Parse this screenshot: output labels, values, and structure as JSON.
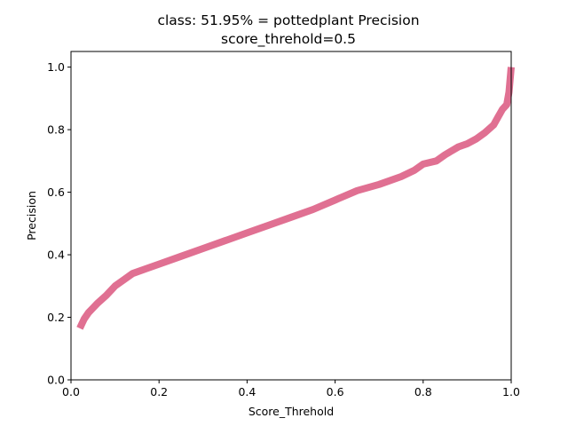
{
  "chart_data": {
    "type": "line",
    "title_lines": [
      "class: 51.95% = pottedplant Precision",
      "score_threhold=0.5"
    ],
    "xlabel": "Score_Threhold",
    "ylabel": "Precision",
    "xlim": [
      0.0,
      1.0
    ],
    "ylim": [
      0.0,
      1.05
    ],
    "x_ticks": [
      0.0,
      0.2,
      0.4,
      0.6,
      0.8,
      1.0
    ],
    "x_tick_labels": [
      "0.0",
      "0.2",
      "0.4",
      "0.6",
      "0.8",
      "1.0"
    ],
    "y_ticks": [
      0.0,
      0.2,
      0.4,
      0.6,
      0.8,
      1.0
    ],
    "y_tick_labels": [
      "0.0",
      "0.2",
      "0.4",
      "0.6",
      "0.8",
      "1.0"
    ],
    "grid": false,
    "legend": "none",
    "series": [
      {
        "color": "#e07092",
        "x": [
          0.02,
          0.025,
          0.03,
          0.04,
          0.05,
          0.06,
          0.08,
          0.1,
          0.12,
          0.14,
          0.17,
          0.2,
          0.25,
          0.3,
          0.35,
          0.4,
          0.45,
          0.5,
          0.55,
          0.6,
          0.65,
          0.7,
          0.75,
          0.78,
          0.8,
          0.83,
          0.85,
          0.88,
          0.9,
          0.92,
          0.94,
          0.96,
          0.97,
          0.98,
          0.99,
          0.995,
          1.0
        ],
        "y": [
          0.165,
          0.18,
          0.195,
          0.215,
          0.23,
          0.245,
          0.27,
          0.3,
          0.32,
          0.34,
          0.355,
          0.37,
          0.395,
          0.42,
          0.445,
          0.47,
          0.495,
          0.52,
          0.545,
          0.575,
          0.605,
          0.625,
          0.65,
          0.67,
          0.69,
          0.7,
          0.72,
          0.745,
          0.755,
          0.77,
          0.79,
          0.815,
          0.84,
          0.865,
          0.88,
          0.92,
          1.0
        ]
      }
    ]
  }
}
